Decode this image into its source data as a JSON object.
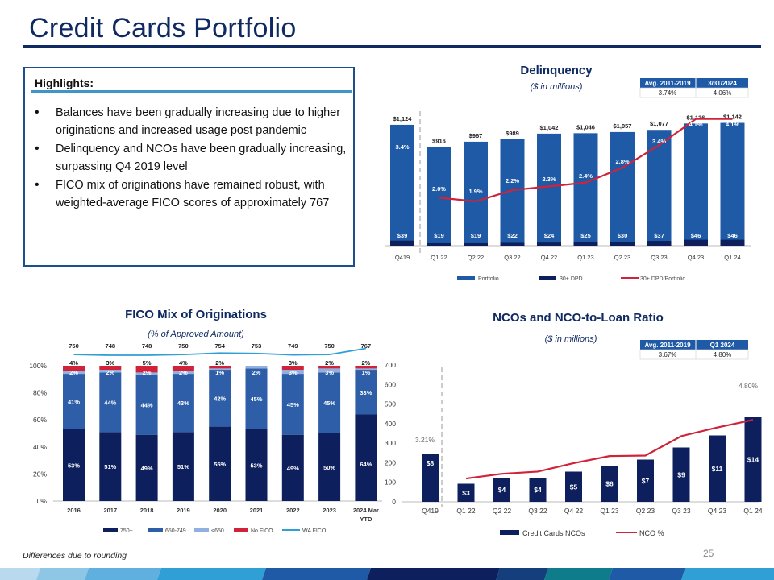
{
  "page": {
    "title": "Credit Cards Portfolio",
    "footnote": "Differences due to rounding",
    "page_number": "25"
  },
  "highlights": {
    "title": "Highlights:",
    "bullets": [
      "Balances have been gradually increasing due to higher originations and increased usage post pandemic",
      "Delinquency and NCOs have been gradually increasing, surpassing Q4 2019 level",
      "FICO mix of originations have remained robust, with weighted-average FICO scores of approximately 767"
    ]
  },
  "colors": {
    "navy": "#0d1f5c",
    "blue": "#1f5aa6",
    "mid_blue": "#2e5ea8",
    "light_blue": "#8fb0e0",
    "red": "#d0233a",
    "cyan": "#2f9fd6",
    "title_blue": "#0f2a62"
  },
  "chart_data": [
    {
      "id": "delinquency",
      "type": "bar",
      "title": "Delinquency",
      "subtitle": "($ in millions)",
      "categories": [
        "Q419",
        "Q1 22",
        "Q2 22",
        "Q3 22",
        "Q4 22",
        "Q1 23",
        "Q2 23",
        "Q3 23",
        "Q4 23",
        "Q1 24"
      ],
      "series": [
        {
          "name": "Portfolio",
          "kind": "bar",
          "values": [
            1124,
            916,
            967,
            989,
            1042,
            1046,
            1057,
            1077,
            1136,
            1142
          ],
          "labels": [
            "$1,124",
            "$916",
            "$967",
            "$989",
            "$1,042",
            "$1,046",
            "$1,057",
            "$1,077",
            "$1,136",
            "$1,142"
          ]
        },
        {
          "name": "30+ DPD",
          "kind": "bar",
          "values": [
            39,
            19,
            19,
            22,
            24,
            25,
            30,
            37,
            46,
            46
          ],
          "labels": [
            "$39",
            "$19",
            "$19",
            "$22",
            "$24",
            "$25",
            "$30",
            "$37",
            "$46",
            "$46"
          ]
        },
        {
          "name": "30+ DPD/Portfolio",
          "kind": "line",
          "values": [
            3.4,
            2.0,
            1.9,
            2.2,
            2.3,
            2.4,
            2.8,
            3.4,
            4.1,
            4.1
          ],
          "labels": [
            "3.4%",
            "2.0%",
            "1.9%",
            "2.2%",
            "2.3%",
            "2.4%",
            "2.8%",
            "3.4%",
            "4.1%",
            "4.1%"
          ]
        }
      ],
      "ylim": [
        0,
        1200
      ],
      "legend_position": "bottom",
      "table": {
        "headers": [
          "Avg. 2011-2019",
          "3/31/2024"
        ],
        "values": [
          "3.74%",
          "4.06%"
        ]
      }
    },
    {
      "id": "fico_mix",
      "type": "bar",
      "stacked": true,
      "title": "FICO Mix of Originations",
      "subtitle": "(% of Approved Amount)",
      "categories": [
        "2016",
        "2017",
        "2018",
        "2019",
        "2020",
        "2021",
        "2022",
        "2023",
        "2024 Mar YTD"
      ],
      "y_ticks": [
        "0%",
        "20%",
        "40%",
        "60%",
        "80%",
        "100%"
      ],
      "ylim": [
        0,
        100
      ],
      "series": [
        {
          "name": "750+",
          "values": [
            53,
            51,
            49,
            51,
            55,
            53,
            49,
            50,
            64
          ],
          "labels": [
            "53%",
            "51%",
            "49%",
            "51%",
            "55%",
            "53%",
            "49%",
            "50%",
            "64%"
          ]
        },
        {
          "name": "650-749",
          "values": [
            41,
            44,
            44,
            43,
            42,
            45,
            45,
            45,
            33
          ],
          "labels": [
            "41%",
            "44%",
            "44%",
            "43%",
            "42%",
            "45%",
            "45%",
            "45%",
            "33%"
          ]
        },
        {
          "name": "<650",
          "values": [
            2,
            2,
            2,
            2,
            1,
            2,
            3,
            3,
            1
          ],
          "labels": [
            "2%",
            "2%",
            "2%",
            "2%",
            "1%",
            "2%",
            "3%",
            "3%",
            "1%"
          ]
        },
        {
          "name": "No FICO",
          "values": [
            4,
            3,
            5,
            4,
            2,
            0,
            3,
            2,
            2
          ],
          "labels": [
            "4%",
            "3%",
            "5%",
            "4%",
            "2%",
            "",
            "3%",
            "2%",
            "2%"
          ]
        }
      ],
      "wa_fico": {
        "name": "WA FICO",
        "values": [
          750,
          748,
          748,
          750,
          754,
          753,
          749,
          750,
          767
        ],
        "labels": [
          "750",
          "748",
          "748",
          "750",
          "754",
          "753",
          "749",
          "750",
          "767"
        ]
      },
      "legend_position": "bottom"
    },
    {
      "id": "nco",
      "type": "bar",
      "title": "NCOs and NCO-to-Loan Ratio",
      "subtitle": "($ in millions)",
      "categories": [
        "Q419",
        "Q1 22",
        "Q2 22",
        "Q3 22",
        "Q4 22",
        "Q1 23",
        "Q2 23",
        "Q3 23",
        "Q4 23",
        "Q1 24"
      ],
      "y_ticks": [
        "0",
        "100",
        "200",
        "300",
        "400",
        "500",
        "600",
        "700"
      ],
      "ylim": [
        0,
        700
      ],
      "series": [
        {
          "name": "Credit Cards NCOs",
          "kind": "bar",
          "values": [
            8,
            3,
            4,
            4,
            5,
            6,
            7,
            9,
            11,
            14
          ],
          "labels": [
            "$8",
            "$3",
            "$4",
            "$4",
            "$5",
            "$6",
            "$7",
            "$9",
            "$11",
            "$14"
          ]
        },
        {
          "name": "NCO %",
          "kind": "line",
          "values": [
            3.21,
            1.33,
            1.61,
            1.74,
            2.24,
            2.66,
            2.69,
            3.84,
            4.35,
            4.8
          ]
        }
      ],
      "annotations": [
        "3.21%",
        "4.80%"
      ],
      "legend_position": "bottom",
      "table": {
        "headers": [
          "Avg. 2011-2019",
          "Q1 2024"
        ],
        "values": [
          "3.67%",
          "4.80%"
        ]
      }
    }
  ]
}
